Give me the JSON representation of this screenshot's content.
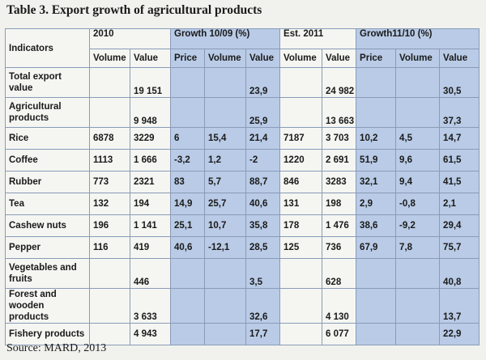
{
  "title": "Table 3. Export growth of agricultural products",
  "source": "Source: MARD, 2013",
  "headers": {
    "indicators": "Indicators",
    "y2010": "2010",
    "growth_10_09": "Growth 10/09 (%)",
    "est_2011": "Est. 2011",
    "growth_11_10": "Growth11/10 (%)",
    "volume": "Volume",
    "value": "Value",
    "price": "Price"
  },
  "rows": [
    {
      "label": "Total export value",
      "c": [
        "",
        "19 151",
        "",
        "",
        "23,9",
        "",
        "24 982",
        "",
        "",
        "30,5"
      ]
    },
    {
      "label": "Agricultural products",
      "c": [
        "",
        "9 948",
        "",
        "",
        "25,9",
        "",
        "13 663",
        "",
        "",
        "37,3"
      ]
    },
    {
      "label": "Rice",
      "c": [
        "6878",
        "3229",
        "6",
        "15,4",
        "21,4",
        "7187",
        "3 703",
        "10,2",
        "4,5",
        "14,7"
      ]
    },
    {
      "label": "Coffee",
      "c": [
        "1113",
        "1 666",
        "-3,2",
        "1,2",
        "-2",
        "1220",
        "2 691",
        "51,9",
        "9,6",
        "61,5"
      ]
    },
    {
      "label": "Rubber",
      "c": [
        "773",
        "2321",
        "83",
        "5,7",
        "88,7",
        "846",
        "3283",
        "32,1",
        "9,4",
        "41,5"
      ]
    },
    {
      "label": "Tea",
      "c": [
        "132",
        "194",
        "14,9",
        "25,7",
        "40,6",
        "131",
        "198",
        "2,9",
        "-0,8",
        "2,1"
      ]
    },
    {
      "label": "Cashew nuts",
      "c": [
        "196",
        "1 141",
        "25,1",
        "10,7",
        "35,8",
        "178",
        "1 476",
        "38,6",
        "-9,2",
        "29,4"
      ]
    },
    {
      "label": "Pepper",
      "c": [
        "116",
        "419",
        "40,6",
        "-12,1",
        "28,5",
        "125",
        "736",
        "67,9",
        "7,8",
        "75,7"
      ]
    },
    {
      "label": "Vegetables and fruits",
      "c": [
        "",
        "446",
        "",
        "",
        "3,5",
        "",
        "628",
        "",
        "",
        "40,8"
      ]
    },
    {
      "label": "Forest and wooden products",
      "c": [
        "",
        "3 633",
        "",
        "",
        "32,6",
        "",
        "4 130",
        "",
        "",
        "13,7"
      ]
    },
    {
      "label": "Fishery products",
      "c": [
        "",
        "4 943",
        "",
        "",
        "17,7",
        "",
        "6 077",
        "",
        "",
        "22,9"
      ]
    }
  ]
}
